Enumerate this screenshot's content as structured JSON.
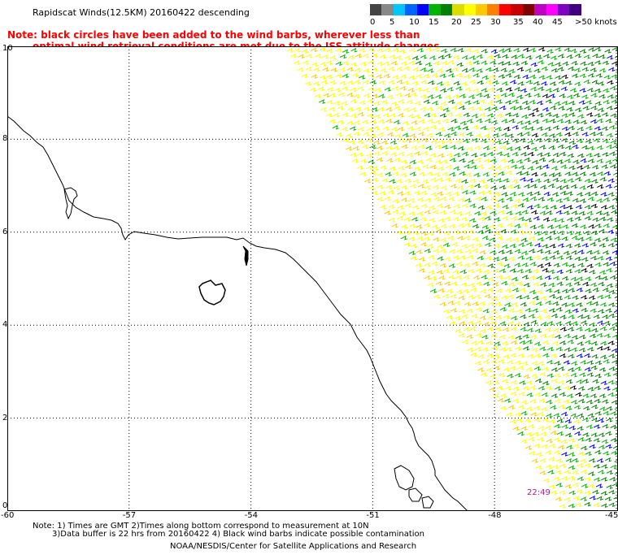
{
  "header": {
    "title": "Rapidscat Winds(12.5KM) 20160422 descending",
    "note_line1": "Note: black circles have been added to the wind barbs, wherever less than",
    "note_line2": "optimal wind retrieval conditions are met due to the ISS attitude changes."
  },
  "legend": {
    "labels": [
      "0",
      "5",
      "10",
      "15",
      "20",
      "25",
      "30",
      "35",
      "40",
      "45",
      ">50 knots"
    ],
    "colors": [
      "#444444",
      "#888888",
      "#00c8ff",
      "#0064ff",
      "#0000ff",
      "#00b400",
      "#008000",
      "#dcdc00",
      "#ffff00",
      "#ffc800",
      "#ff8000",
      "#ff0000",
      "#c80000",
      "#800000",
      "#c000c0",
      "#ff00ff",
      "#8000c0",
      "#400080"
    ]
  },
  "map": {
    "lon_labels": [
      "-60",
      "-57",
      "-54",
      "-51",
      "-48",
      "-45"
    ],
    "lat_labels": [
      "10",
      "8",
      "6",
      "4",
      "2",
      "0"
    ],
    "lon_range": [
      -60,
      -45
    ],
    "lat_range": [
      0,
      10
    ],
    "grid": true,
    "timestamp": "22:49"
  },
  "footer": {
    "line1": "Note: 1) Times are GMT 2)Times along bottom correspond to measurement at 10N",
    "line2": "3)Data buffer is 22 hrs from 20160422 4) Black wind barbs indicate possible contamination",
    "line3": "NOAA/NESDIS/Center for Satellite Applications and Research"
  }
}
